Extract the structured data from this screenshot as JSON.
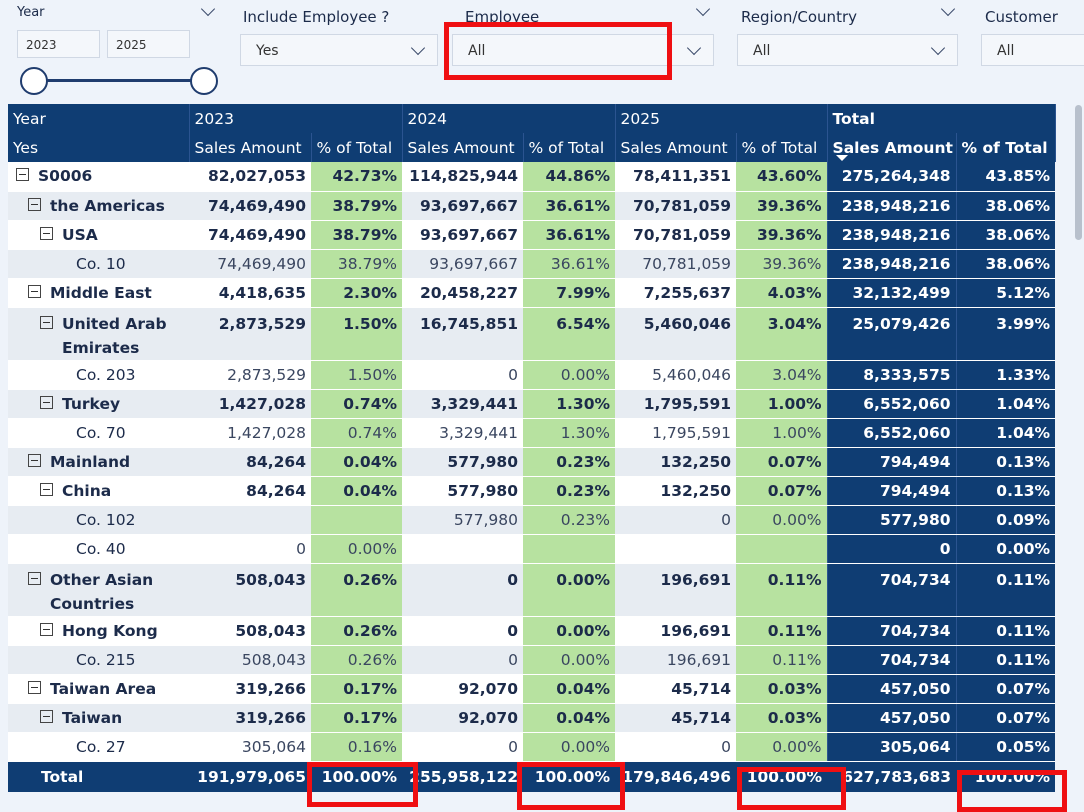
{
  "filters": {
    "year": {
      "label": "Year",
      "from": "2023",
      "to": "2025"
    },
    "include_employee": {
      "label": "Include Employee ?",
      "value": "Yes"
    },
    "employee": {
      "label": "Employee",
      "value": "All"
    },
    "region": {
      "label": "Region/Country",
      "value": "All"
    },
    "customer": {
      "label": "Customer",
      "value": "All"
    }
  },
  "matrix": {
    "header1": {
      "label": "Year",
      "years": [
        "2023",
        "2024",
        "2025"
      ],
      "total": "Total"
    },
    "header2": {
      "label": "Yes",
      "sales": "Sales Amount",
      "pct": "% of Total"
    },
    "rows": [
      {
        "label": "S0006",
        "v": [
          "82,027,053",
          "42.73%",
          "114,825,944",
          "44.86%",
          "78,411,351",
          "43.60%",
          "275,264,348",
          "43.85%"
        ]
      },
      {
        "label": "the Americas",
        "v": [
          "74,469,490",
          "38.79%",
          "93,697,667",
          "36.61%",
          "70,781,059",
          "39.36%",
          "238,948,216",
          "38.06%"
        ]
      },
      {
        "label": "USA",
        "v": [
          "74,469,490",
          "38.79%",
          "93,697,667",
          "36.61%",
          "70,781,059",
          "39.36%",
          "238,948,216",
          "38.06%"
        ]
      },
      {
        "label": "Co. 10",
        "v": [
          "74,469,490",
          "38.79%",
          "93,697,667",
          "36.61%",
          "70,781,059",
          "39.36%",
          "238,948,216",
          "38.06%"
        ]
      },
      {
        "label": "Middle East",
        "v": [
          "4,418,635",
          "2.30%",
          "20,458,227",
          "7.99%",
          "7,255,637",
          "4.03%",
          "32,132,499",
          "5.12%"
        ]
      },
      {
        "label": "United Arab",
        "label2": "Emirates",
        "v": [
          "2,873,529",
          "1.50%",
          "16,745,851",
          "6.54%",
          "5,460,046",
          "3.04%",
          "25,079,426",
          "3.99%"
        ]
      },
      {
        "label": "Co. 203",
        "v": [
          "2,873,529",
          "1.50%",
          "0",
          "0.00%",
          "5,460,046",
          "3.04%",
          "8,333,575",
          "1.33%"
        ]
      },
      {
        "label": "Turkey",
        "v": [
          "1,427,028",
          "0.74%",
          "3,329,441",
          "1.30%",
          "1,795,591",
          "1.00%",
          "6,552,060",
          "1.04%"
        ]
      },
      {
        "label": "Co. 70",
        "v": [
          "1,427,028",
          "0.74%",
          "3,329,441",
          "1.30%",
          "1,795,591",
          "1.00%",
          "6,552,060",
          "1.04%"
        ]
      },
      {
        "label": "Mainland",
        "v": [
          "84,264",
          "0.04%",
          "577,980",
          "0.23%",
          "132,250",
          "0.07%",
          "794,494",
          "0.13%"
        ]
      },
      {
        "label": "China",
        "v": [
          "84,264",
          "0.04%",
          "577,980",
          "0.23%",
          "132,250",
          "0.07%",
          "794,494",
          "0.13%"
        ]
      },
      {
        "label": "Co. 102",
        "v": [
          "",
          "",
          "577,980",
          "0.23%",
          "0",
          "0.00%",
          "577,980",
          "0.09%"
        ]
      },
      {
        "label": "Co. 40",
        "v": [
          "0",
          "0.00%",
          "",
          "",
          "",
          "",
          "0",
          "0.00%"
        ]
      },
      {
        "label": "Other Asian",
        "label2": "Countries",
        "v": [
          "508,043",
          "0.26%",
          "0",
          "0.00%",
          "196,691",
          "0.11%",
          "704,734",
          "0.11%"
        ]
      },
      {
        "label": "Hong Kong",
        "v": [
          "508,043",
          "0.26%",
          "0",
          "0.00%",
          "196,691",
          "0.11%",
          "704,734",
          "0.11%"
        ]
      },
      {
        "label": "Co. 215",
        "v": [
          "508,043",
          "0.26%",
          "0",
          "0.00%",
          "196,691",
          "0.11%",
          "704,734",
          "0.11%"
        ]
      },
      {
        "label": "Taiwan Area",
        "v": [
          "319,266",
          "0.17%",
          "92,070",
          "0.04%",
          "45,714",
          "0.03%",
          "457,050",
          "0.07%"
        ]
      },
      {
        "label": "Taiwan",
        "v": [
          "319,266",
          "0.17%",
          "92,070",
          "0.04%",
          "45,714",
          "0.03%",
          "457,050",
          "0.07%"
        ]
      },
      {
        "label": "Co. 27",
        "v": [
          "305,064",
          "0.16%",
          "0",
          "0.00%",
          "0",
          "0.00%",
          "305,064",
          "0.05%"
        ]
      }
    ],
    "total": {
      "label": "Total",
      "v": [
        "191,979,065",
        "100.00%",
        "255,958,122",
        "100.00%",
        "179,846,496",
        "100.00%",
        "627,783,683",
        "100.00%"
      ]
    }
  }
}
